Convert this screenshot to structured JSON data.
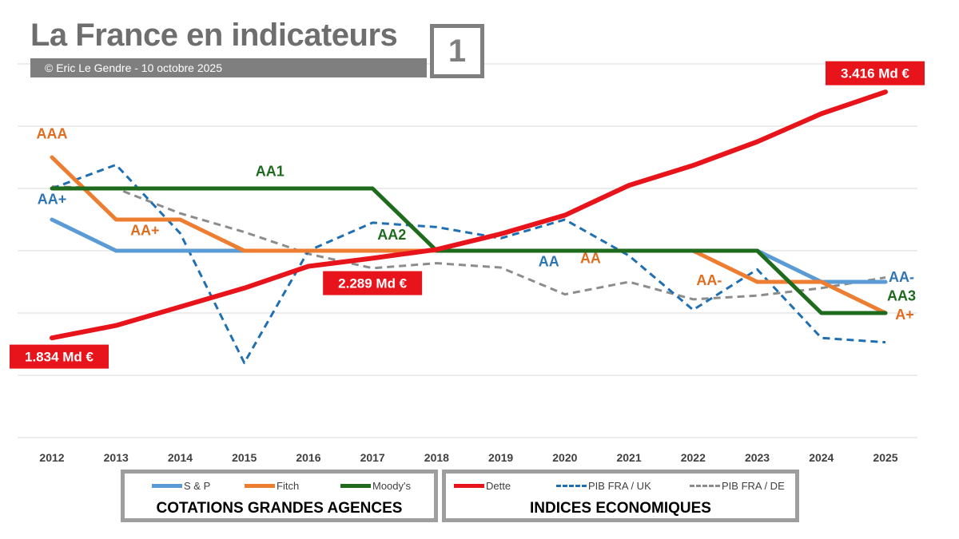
{
  "header": {
    "title": "La France en indicateurs",
    "subtitle": "© Eric Le Gendre -  10 octobre 2025",
    "badge": "1"
  },
  "legends": {
    "agencies": {
      "title": "COTATIONS  GRANDES AGENCES",
      "items": [
        {
          "label": "S & P",
          "color": "#5b9bd5",
          "style": "solid"
        },
        {
          "label": "Fitch",
          "color": "#ed7d31",
          "style": "solid"
        },
        {
          "label": "Moody's",
          "color": "#1e6b1e",
          "style": "solid"
        }
      ]
    },
    "indices": {
      "title": "INDICES ECONOMIQUES",
      "items": [
        {
          "label": "Dette",
          "color": "#e8141b",
          "style": "solid"
        },
        {
          "label": "PIB FRA / UK",
          "color": "#1f6fb2",
          "style": "dashed"
        },
        {
          "label": "PIB FRA / DE",
          "color": "#8c8c8c",
          "style": "dashed"
        }
      ]
    }
  },
  "chart_data": {
    "type": "line",
    "title": "La France en indicateurs",
    "x": [
      2012,
      2013,
      2014,
      2015,
      2016,
      2017,
      2018,
      2019,
      2020,
      2021,
      2022,
      2023,
      2024,
      2025
    ],
    "rating_scale": [
      "A+",
      "AA-",
      "AA",
      "AA+",
      "AAA"
    ],
    "ylim": [
      0,
      6
    ],
    "grid": true,
    "series": [
      {
        "name": "S & P",
        "color": "#5b9bd5",
        "dash": false,
        "width": 5,
        "values": [
          3.5,
          3,
          3,
          3,
          3,
          3,
          3,
          3,
          3,
          3,
          3,
          3,
          2.5,
          2.5
        ]
      },
      {
        "name": "Fitch",
        "color": "#ed7d31",
        "dash": false,
        "width": 5,
        "values": [
          4.5,
          3.5,
          3.5,
          3,
          3,
          3,
          3,
          3,
          3,
          3,
          3,
          2.5,
          2.5,
          2
        ]
      },
      {
        "name": "Moody's",
        "color": "#1e6b1e",
        "dash": false,
        "width": 5,
        "values": [
          4,
          4,
          4,
          4,
          4,
          4,
          3,
          3,
          3,
          3,
          3,
          3,
          2,
          2
        ]
      },
      {
        "name": "Dette",
        "color": "#e8141b",
        "dash": false,
        "width": 6,
        "values": [
          1.6,
          1.8,
          2.1,
          2.4,
          2.75,
          2.88,
          3.02,
          3.27,
          3.57,
          4.05,
          4.37,
          4.75,
          5.2,
          5.55
        ]
      },
      {
        "name": "PIB FRA / UK",
        "color": "#1f6fb2",
        "dash": true,
        "width": 3,
        "values": [
          4,
          4.38,
          3.28,
          1.2,
          3,
          3.45,
          3.38,
          3.2,
          3.5,
          2.92,
          2.05,
          2.7,
          1.6,
          1.53
        ]
      },
      {
        "name": "PIB FRA / DE",
        "color": "#8c8c8c",
        "dash": true,
        "width": 3,
        "values": [
          4.03,
          4,
          3.6,
          3.3,
          2.95,
          2.72,
          2.8,
          2.73,
          2.3,
          2.5,
          2.22,
          2.28,
          2.4,
          2.57
        ]
      }
    ],
    "annotations": {
      "agency_labels": [
        {
          "text": "AAA",
          "color": "#e06c1f",
          "x": 2012,
          "y": 4.8
        },
        {
          "text": "AA+",
          "color": "#2e75b6",
          "x": 2012,
          "y": 3.75
        },
        {
          "text": "AA1",
          "color": "#1e6b1e",
          "x": 2015.4,
          "y": 4.2
        },
        {
          "text": "AA+",
          "color": "#e06c1f",
          "x": 2013.45,
          "y": 3.25
        },
        {
          "text": "AA2",
          "color": "#1e6b1e",
          "x": 2017.3,
          "y": 3.18
        },
        {
          "text": "AA",
          "color": "#2e75b6",
          "x": 2019.75,
          "y": 2.75
        },
        {
          "text": "AA",
          "color": "#e06c1f",
          "x": 2020.4,
          "y": 2.8
        },
        {
          "text": "AA-",
          "color": "#e06c1f",
          "x": 2022.25,
          "y": 2.45
        },
        {
          "text": "AA-",
          "color": "#2e75b6",
          "x": 2025.25,
          "y": 2.5
        },
        {
          "text": "AA3",
          "color": "#1e6b1e",
          "x": 2025.25,
          "y": 2.2
        },
        {
          "text": "A+",
          "color": "#e06c1f",
          "x": 2025.3,
          "y": 1.9
        }
      ],
      "value_labels": [
        {
          "text": "1.834 Md €",
          "x": 2012,
          "y": 1.3
        },
        {
          "text": "2.289 Md €",
          "x": 2017,
          "y": 2.48
        },
        {
          "text": "3.416 Md €",
          "x": 2025,
          "y": 5.85
        }
      ]
    }
  }
}
